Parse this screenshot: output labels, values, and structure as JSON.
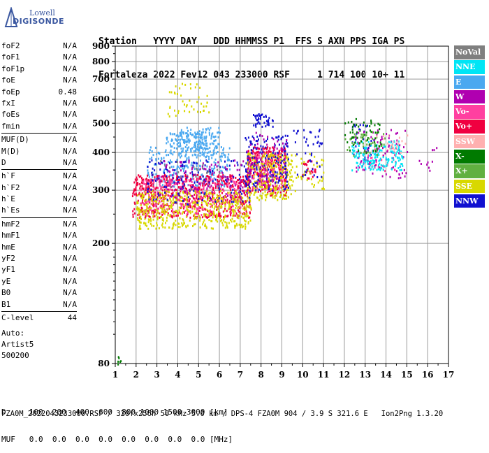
{
  "logo": {
    "line1": "Lowell",
    "line2": "DIGISONDE"
  },
  "header": {
    "row1": "Station   YYYY DAY   DDD HHMMSS P1  FFS S AXN PPS IGA PS",
    "row2": "Fortaleza 2022 Fev12 043 233000 RSF     1 714 100 10+ 11"
  },
  "params": {
    "group1": [
      {
        "k": "foF2",
        "v": "N/A"
      },
      {
        "k": "foF1",
        "v": "N/A"
      },
      {
        "k": "foF1p",
        "v": "N/A"
      },
      {
        "k": "foE",
        "v": "N/A"
      },
      {
        "k": "foEp",
        "v": "0.48"
      },
      {
        "k": "fxI",
        "v": "N/A"
      },
      {
        "k": "foEs",
        "v": "N/A"
      },
      {
        "k": "fmin",
        "v": "N/A"
      }
    ],
    "group2": [
      {
        "k": "MUF(D)",
        "v": "N/A"
      },
      {
        "k": "M(D)",
        "v": "N/A"
      },
      {
        "k": "D",
        "v": "N/A"
      }
    ],
    "group3": [
      {
        "k": "h`F",
        "v": "N/A"
      },
      {
        "k": "h`F2",
        "v": "N/A"
      },
      {
        "k": "h`E",
        "v": "N/A"
      },
      {
        "k": "h`Es",
        "v": "N/A"
      }
    ],
    "group4": [
      {
        "k": "hmF2",
        "v": "N/A"
      },
      {
        "k": "hmF1",
        "v": "N/A"
      },
      {
        "k": "hmE",
        "v": "N/A"
      },
      {
        "k": "yF2",
        "v": "N/A"
      },
      {
        "k": "yF1",
        "v": "N/A"
      },
      {
        "k": "yE",
        "v": "N/A"
      },
      {
        "k": "B0",
        "v": "N/A"
      },
      {
        "k": "B1",
        "v": "N/A"
      }
    ],
    "group5": [
      {
        "k": "C-level",
        "v": "44"
      }
    ],
    "auto": [
      "Auto:",
      "Artist5",
      "500200"
    ]
  },
  "legend": [
    {
      "label": "NoVal",
      "color": "#7f7f7f"
    },
    {
      "label": "NNE",
      "color": "#00e5f5"
    },
    {
      "label": "E",
      "color": "#4aa8f0"
    },
    {
      "label": "W",
      "color": "#b000b0"
    },
    {
      "label": "Vo-",
      "color": "#ff40a0"
    },
    {
      "label": "Vo+",
      "color": "#f00040"
    },
    {
      "label": "SSW",
      "color": "#ffb0b0"
    },
    {
      "label": "X-",
      "color": "#007a00"
    },
    {
      "label": "X+",
      "color": "#60b040"
    },
    {
      "label": "SSE",
      "color": "#d8d800"
    },
    {
      "label": "NNW",
      "color": "#1010d0"
    }
  ],
  "footer": {
    "line1": "D     100  200  400  600  800 1000 1500 3000 [km]",
    "line2": "MUF   0.0  0.0  0.0  0.0  0.0  0.0  0.0  0.0 [MHz]",
    "line3": "FZA0M_2022043233000.RSF / 320fx256h 50 kHz 5.0 km / DPS-4 FZA0M 904 / 3.9 S 321.6 E   Ion2Png 1.3.20"
  },
  "chart_data": {
    "type": "scatter",
    "title": "",
    "xlabel": "",
    "ylabel": "",
    "xlim": [
      1,
      17
    ],
    "ylim": [
      80,
      900
    ],
    "xticks": [
      1,
      2,
      3,
      4,
      5,
      6,
      7,
      8,
      9,
      10,
      11,
      12,
      13,
      14,
      15,
      16,
      17
    ],
    "yticks": [
      80,
      200,
      300,
      400,
      500,
      600,
      700,
      800,
      900
    ],
    "grid": true,
    "y_scale": "log",
    "legend_position": "right",
    "series": [
      {
        "name": "E",
        "color": "#4aa8f0",
        "clusters": [
          {
            "x": [
              3.4,
              5.8
            ],
            "y": [
              415,
              470
            ],
            "n": 120
          },
          {
            "x": [
              2.5,
              6.5
            ],
            "y": [
              310,
              420
            ],
            "n": 260
          },
          {
            "x": [
              4.0,
              6.0
            ],
            "y": [
              390,
              490
            ],
            "n": 90
          }
        ]
      },
      {
        "name": "Vo+",
        "color": "#f00040",
        "clusters": [
          {
            "x": [
              1.8,
              7.5
            ],
            "y": [
              245,
              340
            ],
            "n": 700
          },
          {
            "x": [
              7.3,
              9.2
            ],
            "y": [
              290,
              420
            ],
            "n": 300
          },
          {
            "x": [
              9.8,
              10.6
            ],
            "y": [
              330,
              380
            ],
            "n": 30
          }
        ]
      },
      {
        "name": "Vo-",
        "color": "#ff40a0",
        "clusters": [
          {
            "x": [
              2.2,
              7.0
            ],
            "y": [
              250,
              330
            ],
            "n": 250
          },
          {
            "x": [
              7.5,
              9.0
            ],
            "y": [
              300,
              400
            ],
            "n": 100
          },
          {
            "x": [
              13.0,
              14.5
            ],
            "y": [
              350,
              420
            ],
            "n": 40
          }
        ]
      },
      {
        "name": "SSE",
        "color": "#d8d800",
        "clusters": [
          {
            "x": [
              2.0,
              7.5
            ],
            "y": [
              225,
              300
            ],
            "n": 500
          },
          {
            "x": [
              7.3,
              9.5
            ],
            "y": [
              280,
              400
            ],
            "n": 250
          },
          {
            "x": [
              3.5,
              5.5
            ],
            "y": [
              530,
              680
            ],
            "n": 45
          },
          {
            "x": [
              9.5,
              11.0
            ],
            "y": [
              300,
              400
            ],
            "n": 40
          }
        ]
      },
      {
        "name": "NNW",
        "color": "#1010d0",
        "clusters": [
          {
            "x": [
              2.5,
              7.5
            ],
            "y": [
              270,
              380
            ],
            "n": 150
          },
          {
            "x": [
              7.2,
              9.3
            ],
            "y": [
              300,
              460
            ],
            "n": 150
          },
          {
            "x": [
              7.6,
              8.6
            ],
            "y": [
              490,
              540
            ],
            "n": 40
          },
          {
            "x": [
              9.5,
              11.0
            ],
            "y": [
              330,
              480
            ],
            "n": 40
          },
          {
            "x": [
              12.3,
              13.5
            ],
            "y": [
              380,
              500
            ],
            "n": 30
          }
        ]
      },
      {
        "name": "W",
        "color": "#b000b0",
        "clusters": [
          {
            "x": [
              3.0,
              7.5
            ],
            "y": [
              280,
              380
            ],
            "n": 120
          },
          {
            "x": [
              7.3,
              9.3
            ],
            "y": [
              310,
              470
            ],
            "n": 80
          },
          {
            "x": [
              12.5,
              15.0
            ],
            "y": [
              330,
              480
            ],
            "n": 90
          },
          {
            "x": [
              15.5,
              16.6
            ],
            "y": [
              350,
              420
            ],
            "n": 10
          }
        ]
      },
      {
        "name": "NNE",
        "color": "#00e5f5",
        "clusters": [
          {
            "x": [
              12.3,
              14.8
            ],
            "y": [
              350,
              440
            ],
            "n": 160
          }
        ]
      },
      {
        "name": "X-",
        "color": "#007a00",
        "clusters": [
          {
            "x": [
              12.0,
              13.8
            ],
            "y": [
              400,
              520
            ],
            "n": 60
          },
          {
            "x": [
              1.0,
              1.3
            ],
            "y": [
              80,
              85
            ],
            "n": 6
          }
        ]
      },
      {
        "name": "X+",
        "color": "#60b040",
        "clusters": [
          {
            "x": [
              12.0,
              14.0
            ],
            "y": [
              390,
              480
            ],
            "n": 40
          }
        ]
      },
      {
        "name": "SSW",
        "color": "#ffb0b0",
        "clusters": [
          {
            "x": [
              13.5,
              15.0
            ],
            "y": [
              400,
              460
            ],
            "n": 20
          }
        ]
      },
      {
        "name": "NoVal",
        "color": "#7f7f7f",
        "clusters": [
          {
            "x": [
              3.0,
              6.0
            ],
            "y": [
              300,
              380
            ],
            "n": 20
          }
        ]
      }
    ]
  }
}
